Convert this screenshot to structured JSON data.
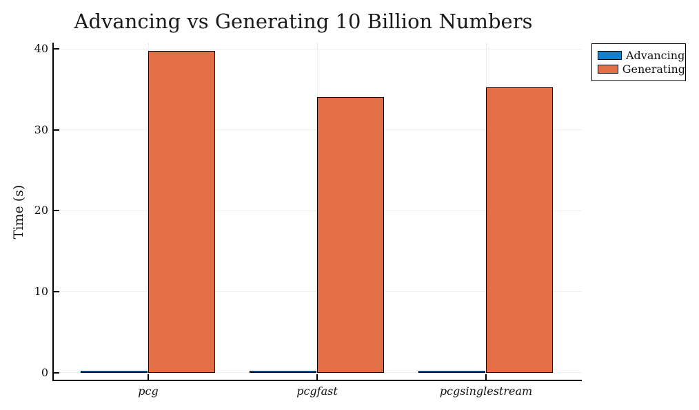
{
  "chart_data": {
    "type": "bar",
    "title": "Advancing vs Generating 10 Billion Numbers",
    "xlabel": "",
    "ylabel": "Time (s)",
    "categories": [
      "pcg",
      "pcgfast",
      "pcgsinglestream"
    ],
    "series": [
      {
        "name": "Advancing",
        "color": "#1580cc",
        "values": [
          0.1,
          0.1,
          0.1
        ]
      },
      {
        "name": "Generating",
        "color": "#e26f46",
        "values": [
          39.6,
          33.9,
          35.1
        ]
      }
    ],
    "yticks": [
      0,
      10,
      20,
      30,
      40
    ],
    "ylim": [
      -1,
      40.7
    ],
    "grid": true,
    "legend_position": "top-right",
    "bar_outline_color": "#000000",
    "background_color": "#ffffff"
  }
}
